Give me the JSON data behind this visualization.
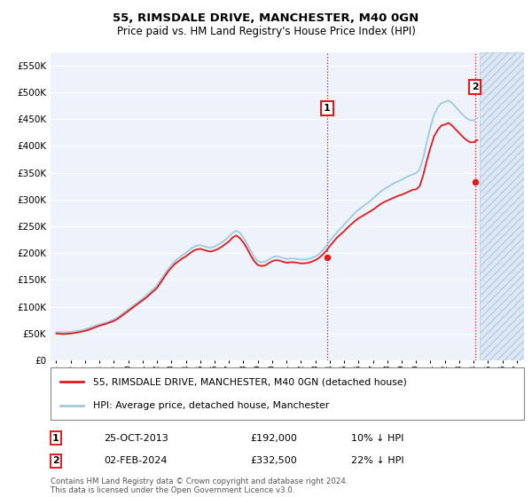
{
  "title": "55, RIMSDALE DRIVE, MANCHESTER, M40 0GN",
  "subtitle": "Price paid vs. HM Land Registry's House Price Index (HPI)",
  "ylabel_ticks": [
    0,
    50000,
    100000,
    150000,
    200000,
    250000,
    300000,
    350000,
    400000,
    450000,
    500000,
    550000
  ],
  "ylabel_labels": [
    "£0",
    "£50K",
    "£100K",
    "£150K",
    "£200K",
    "£250K",
    "£300K",
    "£350K",
    "£400K",
    "£450K",
    "£500K",
    "£550K"
  ],
  "xlim_start": 1994.6,
  "xlim_end": 2027.5,
  "ylim_min": 0,
  "ylim_max": 575000,
  "hpi_color": "#9ecae1",
  "price_color": "#e31a1c",
  "marker_color": "#e31a1c",
  "plot_bg": "#eef2fb",
  "grid_color": "#ffffff",
  "legend_label_red": "55, RIMSDALE DRIVE, MANCHESTER, M40 0GN (detached house)",
  "legend_label_blue": "HPI: Average price, detached house, Manchester",
  "transaction1_date": "25-OCT-2013",
  "transaction1_price": "£192,000",
  "transaction1_hpi": "10% ↓ HPI",
  "transaction1_year": 2013.82,
  "transaction1_value": 192000,
  "transaction2_date": "02-FEB-2024",
  "transaction2_price": "£332,500",
  "transaction2_hpi": "22% ↓ HPI",
  "transaction2_year": 2024.09,
  "transaction2_value": 332500,
  "footer_text": "Contains HM Land Registry data © Crown copyright and database right 2024.\nThis data is licensed under the Open Government Licence v3.0.",
  "hpi_years": [
    1995.0,
    1995.25,
    1995.5,
    1995.75,
    1996.0,
    1996.25,
    1996.5,
    1996.75,
    1997.0,
    1997.25,
    1997.5,
    1997.75,
    1998.0,
    1998.25,
    1998.5,
    1998.75,
    1999.0,
    1999.25,
    1999.5,
    1999.75,
    2000.0,
    2000.25,
    2000.5,
    2000.75,
    2001.0,
    2001.25,
    2001.5,
    2001.75,
    2002.0,
    2002.25,
    2002.5,
    2002.75,
    2003.0,
    2003.25,
    2003.5,
    2003.75,
    2004.0,
    2004.25,
    2004.5,
    2004.75,
    2005.0,
    2005.25,
    2005.5,
    2005.75,
    2006.0,
    2006.25,
    2006.5,
    2006.75,
    2007.0,
    2007.25,
    2007.5,
    2007.75,
    2008.0,
    2008.25,
    2008.5,
    2008.75,
    2009.0,
    2009.25,
    2009.5,
    2009.75,
    2010.0,
    2010.25,
    2010.5,
    2010.75,
    2011.0,
    2011.25,
    2011.5,
    2011.75,
    2012.0,
    2012.25,
    2012.5,
    2012.75,
    2013.0,
    2013.25,
    2013.5,
    2013.75,
    2014.0,
    2014.25,
    2014.5,
    2014.75,
    2015.0,
    2015.25,
    2015.5,
    2015.75,
    2016.0,
    2016.25,
    2016.5,
    2016.75,
    2017.0,
    2017.25,
    2017.5,
    2017.75,
    2018.0,
    2018.25,
    2018.5,
    2018.75,
    2019.0,
    2019.25,
    2019.5,
    2019.75,
    2020.0,
    2020.25,
    2020.5,
    2020.75,
    2021.0,
    2021.25,
    2021.5,
    2021.75,
    2022.0,
    2022.25,
    2022.5,
    2022.75,
    2023.0,
    2023.25,
    2023.5,
    2023.75,
    2024.0,
    2024.25
  ],
  "hpi_values": [
    53000,
    52500,
    52000,
    52500,
    53000,
    54000,
    55000,
    56000,
    58000,
    60000,
    62500,
    65000,
    67000,
    69000,
    71000,
    73500,
    76000,
    80000,
    85000,
    90000,
    95000,
    100000,
    105000,
    110000,
    115000,
    121000,
    127000,
    133000,
    140000,
    150000,
    160000,
    170000,
    178000,
    185000,
    191000,
    196000,
    200000,
    206000,
    211000,
    214000,
    215000,
    213000,
    211000,
    210000,
    212000,
    216000,
    220000,
    225000,
    231000,
    238000,
    242000,
    238000,
    229000,
    218000,
    205000,
    193000,
    185000,
    183000,
    184000,
    188000,
    192000,
    194000,
    193000,
    191000,
    189000,
    190000,
    190000,
    189000,
    188000,
    188000,
    189000,
    191000,
    194000,
    198000,
    205000,
    213000,
    222000,
    231000,
    239000,
    246000,
    253000,
    261000,
    268000,
    275000,
    281000,
    286000,
    291000,
    296000,
    302000,
    308000,
    314000,
    319000,
    323000,
    327000,
    331000,
    334000,
    337000,
    341000,
    344000,
    347000,
    349000,
    356000,
    378000,
    408000,
    435000,
    458000,
    472000,
    480000,
    482000,
    485000,
    480000,
    473000,
    465000,
    458000,
    452000,
    448000,
    448000,
    452000
  ],
  "price_years": [
    1995.0,
    1995.25,
    1995.5,
    1995.75,
    1996.0,
    1996.25,
    1996.5,
    1996.75,
    1997.0,
    1997.25,
    1997.5,
    1997.75,
    1998.0,
    1998.25,
    1998.5,
    1998.75,
    1999.0,
    1999.25,
    1999.5,
    1999.75,
    2000.0,
    2000.25,
    2000.5,
    2000.75,
    2001.0,
    2001.25,
    2001.5,
    2001.75,
    2002.0,
    2002.25,
    2002.5,
    2002.75,
    2003.0,
    2003.25,
    2003.5,
    2003.75,
    2004.0,
    2004.25,
    2004.5,
    2004.75,
    2005.0,
    2005.25,
    2005.5,
    2005.75,
    2006.0,
    2006.25,
    2006.5,
    2006.75,
    2007.0,
    2007.25,
    2007.5,
    2007.75,
    2008.0,
    2008.25,
    2008.5,
    2008.75,
    2009.0,
    2009.25,
    2009.5,
    2009.75,
    2010.0,
    2010.25,
    2010.5,
    2010.75,
    2011.0,
    2011.25,
    2011.5,
    2011.75,
    2012.0,
    2012.25,
    2012.5,
    2012.75,
    2013.0,
    2013.25,
    2013.5,
    2013.75,
    2014.0,
    2014.25,
    2014.5,
    2014.75,
    2015.0,
    2015.25,
    2015.5,
    2015.75,
    2016.0,
    2016.25,
    2016.5,
    2016.75,
    2017.0,
    2017.25,
    2017.5,
    2017.75,
    2018.0,
    2018.25,
    2018.5,
    2018.75,
    2019.0,
    2019.25,
    2019.5,
    2019.75,
    2020.0,
    2020.25,
    2020.5,
    2020.75,
    2021.0,
    2021.25,
    2021.5,
    2021.75,
    2022.0,
    2022.25,
    2022.5,
    2022.75,
    2023.0,
    2023.25,
    2023.5,
    2023.75,
    2024.0,
    2024.25
  ],
  "price_values": [
    50000,
    49500,
    49000,
    49500,
    50000,
    51000,
    52000,
    53500,
    55000,
    57000,
    59500,
    62000,
    64500,
    66500,
    68500,
    71000,
    73500,
    77000,
    82000,
    87000,
    92000,
    97000,
    102000,
    107000,
    112000,
    117000,
    123000,
    129000,
    135000,
    145000,
    155000,
    165000,
    173000,
    180000,
    185000,
    190000,
    194000,
    199000,
    204000,
    207000,
    208000,
    206000,
    204000,
    203000,
    205000,
    208000,
    212000,
    217000,
    222000,
    229000,
    233000,
    228000,
    220000,
    209000,
    196000,
    185000,
    178000,
    176000,
    177000,
    181000,
    185000,
    187000,
    186000,
    184000,
    182000,
    183000,
    183000,
    182000,
    181000,
    181000,
    182000,
    184000,
    187000,
    191000,
    197000,
    204000,
    213000,
    221000,
    229000,
    235000,
    241000,
    248000,
    254000,
    260000,
    265000,
    269000,
    273000,
    277000,
    281000,
    286000,
    291000,
    295000,
    298000,
    301000,
    304000,
    307000,
    309000,
    312000,
    315000,
    318000,
    319000,
    325000,
    346000,
    373000,
    397000,
    418000,
    430000,
    438000,
    440000,
    443000,
    438000,
    431000,
    424000,
    417000,
    411000,
    407000,
    407000,
    411000
  ],
  "hatch_start": 2024.42
}
